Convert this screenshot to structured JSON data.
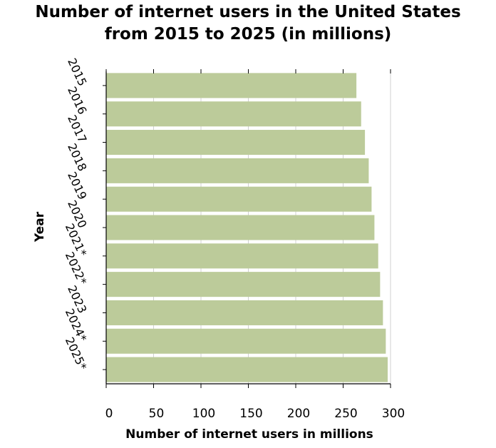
{
  "chart_data": {
    "type": "bar",
    "orientation": "horizontal",
    "title": "Number of internet users in the United States from 2015 to 2025 (in millions)",
    "title_lines": [
      "Number of internet users in the United States",
      "from 2015 to 2025 (in millions)"
    ],
    "xlabel": "Number of internet users in millions",
    "ylabel": "Year",
    "xlim": [
      0,
      300
    ],
    "xticks": [
      0,
      50,
      100,
      150,
      200,
      250,
      300
    ],
    "grid": true,
    "categories": [
      "2015",
      "2016",
      "2017",
      "2018",
      "2019",
      "2020",
      "2021*",
      "2022*",
      "2023",
      "2024*",
      "2025*"
    ],
    "values": [
      264,
      269,
      273,
      277,
      280,
      283,
      287,
      289,
      292,
      295,
      297
    ],
    "bar_color": "#bccb9a"
  }
}
